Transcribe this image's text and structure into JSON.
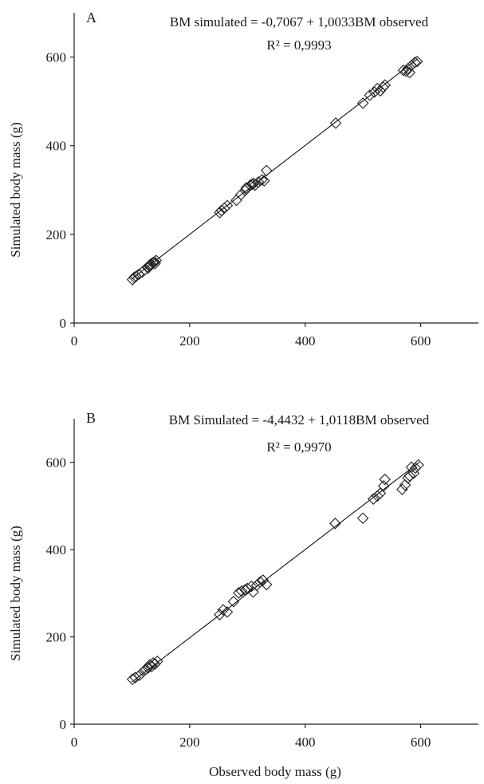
{
  "chart_data": [
    {
      "type": "scatter",
      "panel_label": "A",
      "equation": "BM simulated =  -0,7067 + 1,0033BM observed",
      "r2": "R² = 0,9993",
      "xlabel": "",
      "ylabel": "Simulated body mass (g)",
      "xlim": [
        0,
        700
      ],
      "ylim": [
        0,
        700
      ],
      "x_ticks": [
        0,
        200,
        400,
        600
      ],
      "y_ticks": [
        0,
        200,
        400,
        600
      ],
      "x_tick_labels": [
        "0",
        "200",
        "400",
        "600"
      ],
      "y_tick_labels": [
        "0",
        "200",
        "400",
        "600"
      ],
      "trendline": {
        "intercept": -0.7067,
        "slope": 1.0033,
        "x_range": [
          100,
          595
        ]
      },
      "marker": "diamond-open",
      "points": [
        [
          101,
          98
        ],
        [
          104,
          103
        ],
        [
          107,
          105
        ],
        [
          112,
          110
        ],
        [
          118,
          115
        ],
        [
          122,
          120
        ],
        [
          127,
          126
        ],
        [
          130,
          129
        ],
        [
          133,
          133
        ],
        [
          136,
          136
        ],
        [
          139,
          138
        ],
        [
          142,
          141
        ],
        [
          128,
          124
        ],
        [
          131,
          131
        ],
        [
          140,
          134
        ],
        [
          252,
          249
        ],
        [
          255,
          254
        ],
        [
          260,
          259
        ],
        [
          265,
          265
        ],
        [
          281,
          277
        ],
        [
          289,
          290
        ],
        [
          296,
          299
        ],
        [
          298,
          305
        ],
        [
          305,
          311
        ],
        [
          308,
          313
        ],
        [
          311,
          315
        ],
        [
          313,
          311
        ],
        [
          319,
          318
        ],
        [
          325,
          323
        ],
        [
          329,
          321
        ],
        [
          333,
          344
        ],
        [
          453,
          451
        ],
        [
          500,
          496
        ],
        [
          512,
          514
        ],
        [
          520,
          521
        ],
        [
          525,
          529
        ],
        [
          530,
          524
        ],
        [
          535,
          532
        ],
        [
          538,
          537
        ],
        [
          570,
          570
        ],
        [
          575,
          568
        ],
        [
          578,
          574
        ],
        [
          581,
          565
        ],
        [
          584,
          581
        ],
        [
          590,
          588
        ],
        [
          594,
          590
        ]
      ]
    },
    {
      "type": "scatter",
      "panel_label": "B",
      "equation": "BM Simulated =  -4,4432 + 1,0118BM observed",
      "r2": "R² = 0,9970",
      "xlabel": "Observed  body mass (g)",
      "ylabel": "Simulated body mass (g)",
      "xlim": [
        0,
        700
      ],
      "ylim": [
        0,
        700
      ],
      "x_ticks": [
        0,
        200,
        400,
        600
      ],
      "y_ticks": [
        0,
        200,
        400,
        600
      ],
      "x_tick_labels": [
        "0",
        "200",
        "400",
        "600"
      ],
      "y_tick_labels": [
        "0",
        "200",
        "400",
        "600"
      ],
      "trendline": {
        "intercept": -4.4432,
        "slope": 1.0118,
        "x_range": [
          100,
          598
        ]
      },
      "marker": "diamond-open",
      "points": [
        [
          101,
          103
        ],
        [
          106,
          107
        ],
        [
          113,
          112
        ],
        [
          120,
          121
        ],
        [
          124,
          126
        ],
        [
          128,
          129
        ],
        [
          131,
          136
        ],
        [
          134,
          132
        ],
        [
          137,
          140
        ],
        [
          140,
          138
        ],
        [
          144,
          144
        ],
        [
          252,
          251
        ],
        [
          258,
          262
        ],
        [
          265,
          257
        ],
        [
          276,
          281
        ],
        [
          285,
          301
        ],
        [
          290,
          305
        ],
        [
          296,
          308
        ],
        [
          300,
          311
        ],
        [
          307,
          316
        ],
        [
          310,
          303
        ],
        [
          316,
          318
        ],
        [
          322,
          326
        ],
        [
          327,
          330
        ],
        [
          333,
          320
        ],
        [
          452,
          460
        ],
        [
          500,
          472
        ],
        [
          518,
          516
        ],
        [
          525,
          523
        ],
        [
          530,
          529
        ],
        [
          536,
          546
        ],
        [
          538,
          561
        ],
        [
          568,
          538
        ],
        [
          573,
          548
        ],
        [
          578,
          564
        ],
        [
          581,
          569
        ],
        [
          584,
          589
        ],
        [
          588,
          575
        ],
        [
          591,
          587
        ],
        [
          596,
          594
        ]
      ]
    }
  ]
}
